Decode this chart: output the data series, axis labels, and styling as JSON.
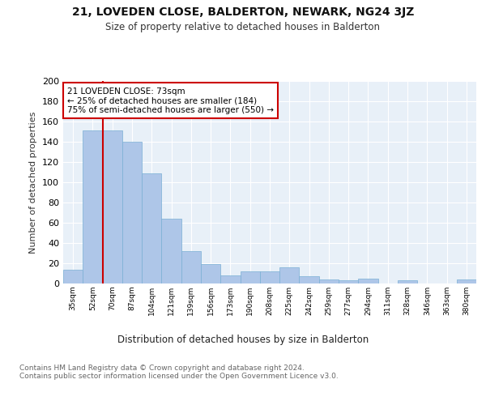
{
  "title": "21, LOVEDEN CLOSE, BALDERTON, NEWARK, NG24 3JZ",
  "subtitle": "Size of property relative to detached houses in Balderton",
  "xlabel": "Distribution of detached houses by size in Balderton",
  "ylabel": "Number of detached properties",
  "categories": [
    "35sqm",
    "52sqm",
    "70sqm",
    "87sqm",
    "104sqm",
    "121sqm",
    "139sqm",
    "156sqm",
    "173sqm",
    "190sqm",
    "208sqm",
    "225sqm",
    "242sqm",
    "259sqm",
    "277sqm",
    "294sqm",
    "311sqm",
    "328sqm",
    "346sqm",
    "363sqm",
    "380sqm"
  ],
  "values": [
    14,
    151,
    151,
    140,
    109,
    64,
    32,
    19,
    8,
    12,
    12,
    16,
    7,
    4,
    3,
    5,
    0,
    3,
    0,
    0,
    4
  ],
  "bar_color": "#aec6e8",
  "bar_edge_color": "#7aafd4",
  "vline_x_idx": 2,
  "vline_color": "#cc0000",
  "annotation_text": "21 LOVEDEN CLOSE: 73sqm\n← 25% of detached houses are smaller (184)\n75% of semi-detached houses are larger (550) →",
  "annotation_box_color": "#ffffff",
  "annotation_box_edge_color": "#cc0000",
  "ylim": [
    0,
    200
  ],
  "yticks": [
    0,
    20,
    40,
    60,
    80,
    100,
    120,
    140,
    160,
    180,
    200
  ],
  "bg_color": "#e8f0f8",
  "footer": "Contains HM Land Registry data © Crown copyright and database right 2024.\nContains public sector information licensed under the Open Government Licence v3.0."
}
